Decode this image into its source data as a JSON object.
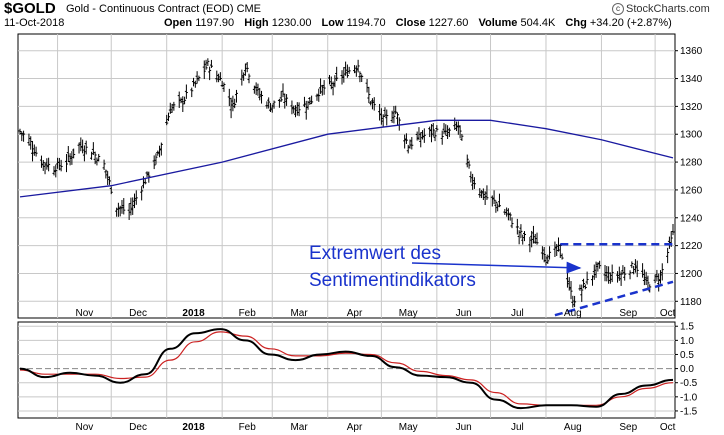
{
  "header": {
    "symbol": "$GOLD",
    "name": "Gold - Continuous Contract (EOD)  CME",
    "date": "11-Oct-2018",
    "logo": "StockCharts.com",
    "open_label": "Open",
    "open": "1197.90",
    "high_label": "High",
    "high": "1230.00",
    "low_label": "Low",
    "low": "1194.70",
    "close_label": "Close",
    "close": "1227.60",
    "volume_label": "Volume",
    "volume": "504.4K",
    "chg_label": "Chg",
    "chg": "+34.20 (+2.87%)"
  },
  "annotation": {
    "line1": "Extremwert des",
    "line2": "Sentimentindikators"
  },
  "colors": {
    "price": "#000000",
    "ma": "#1a1aa0",
    "trend": "#1a33cc",
    "osc_black": "#000000",
    "osc_red": "#cc2222",
    "grid": "#c8c8c8",
    "zero": "#888888"
  },
  "chart_data": [
    {
      "type": "line",
      "subtype": "ohlc-bars",
      "title": "",
      "x_tick_labels": [
        "Nov",
        "Dec",
        "2018",
        "Feb",
        "Mar",
        "Apr",
        "May",
        "Jun",
        "Jul",
        "Aug",
        "Sep",
        "Oct"
      ],
      "y_tick_labels": [
        "1180",
        "1200",
        "1220",
        "1240",
        "1260",
        "1280",
        "1300",
        "1320",
        "1340",
        "1360"
      ],
      "ylim": [
        1168,
        1372
      ],
      "grid": true,
      "series": [
        {
          "role": "price",
          "x": [
            "2017-10-11",
            "2017-10-16",
            "2017-10-23",
            "2017-10-30",
            "2017-11-06",
            "2017-11-13",
            "2017-11-20",
            "2017-11-27",
            "2017-12-04",
            "2017-12-11",
            "2017-12-18",
            "2017-12-27",
            "2018-01-03",
            "2018-01-10",
            "2018-01-17",
            "2018-01-24",
            "2018-02-01",
            "2018-02-07",
            "2018-02-14",
            "2018-02-21",
            "2018-02-28",
            "2018-03-07",
            "2018-03-14",
            "2018-03-21",
            "2018-03-28",
            "2018-04-04",
            "2018-04-11",
            "2018-04-18",
            "2018-04-25",
            "2018-05-02",
            "2018-05-09",
            "2018-05-16",
            "2018-05-23",
            "2018-05-30",
            "2018-06-06",
            "2018-06-13",
            "2018-06-20",
            "2018-06-27",
            "2018-07-05",
            "2018-07-12",
            "2018-07-19",
            "2018-07-26",
            "2018-08-02",
            "2018-08-09",
            "2018-08-16",
            "2018-08-23",
            "2018-08-30",
            "2018-09-06",
            "2018-09-13",
            "2018-09-20",
            "2018-09-27",
            "2018-10-04",
            "2018-10-11"
          ],
          "values": [
            1302,
            1296,
            1280,
            1276,
            1280,
            1292,
            1288,
            1278,
            1248,
            1244,
            1262,
            1284,
            1318,
            1324,
            1336,
            1350,
            1338,
            1320,
            1350,
            1330,
            1320,
            1326,
            1318,
            1322,
            1332,
            1336,
            1344,
            1350,
            1324,
            1310,
            1316,
            1292,
            1298,
            1302,
            1300,
            1306,
            1270,
            1256,
            1250,
            1240,
            1226,
            1224,
            1212,
            1218,
            1180,
            1192,
            1204,
            1198,
            1200,
            1206,
            1192,
            1198,
            1228
          ]
        },
        {
          "role": "moving-average",
          "x": [
            "2017-10-11",
            "2017-12-01",
            "2018-02-01",
            "2018-04-01",
            "2018-05-01",
            "2018-06-01",
            "2018-07-01",
            "2018-08-01",
            "2018-09-01",
            "2018-10-11"
          ],
          "values": [
            1255,
            1263,
            1280,
            1300,
            1305,
            1310,
            1310,
            1304,
            1296,
            1283
          ]
        }
      ],
      "trendlines": [
        {
          "style": "dashed",
          "x": [
            "2018-08-09",
            "2018-10-11"
          ],
          "values": [
            1221,
            1221
          ]
        },
        {
          "style": "dashed",
          "x": [
            "2018-08-06",
            "2018-10-11"
          ],
          "values": [
            1170,
            1194
          ]
        }
      ]
    },
    {
      "type": "line",
      "title": "",
      "x_tick_labels": [
        "Nov",
        "Dec",
        "2018",
        "Feb",
        "Mar",
        "Apr",
        "May",
        "Jun",
        "Jul",
        "Aug",
        "Sep",
        "Oct"
      ],
      "y_tick_labels": [
        "1.5",
        "1.0",
        "0.5",
        "0.0",
        "-0.5",
        "-1.0",
        "-1.5"
      ],
      "ylim": [
        -1.75,
        1.65
      ],
      "grid": true,
      "series": [
        {
          "role": "oscillator",
          "x": [
            "2017-10-11",
            "2017-10-25",
            "2017-11-08",
            "2017-11-22",
            "2017-12-06",
            "2017-12-20",
            "2018-01-03",
            "2018-01-17",
            "2018-01-31",
            "2018-02-14",
            "2018-02-28",
            "2018-03-14",
            "2018-03-28",
            "2018-04-11",
            "2018-04-25",
            "2018-05-09",
            "2018-05-23",
            "2018-06-06",
            "2018-06-20",
            "2018-07-04",
            "2018-07-18",
            "2018-08-01",
            "2018-08-15",
            "2018-08-29",
            "2018-09-12",
            "2018-09-26",
            "2018-10-11"
          ],
          "values": [
            0.0,
            -0.3,
            -0.15,
            -0.25,
            -0.5,
            -0.2,
            0.7,
            1.25,
            1.4,
            1.0,
            0.5,
            0.3,
            0.5,
            0.6,
            0.45,
            0.05,
            -0.25,
            -0.3,
            -0.5,
            -1.1,
            -1.4,
            -1.3,
            -1.3,
            -1.35,
            -0.9,
            -0.6,
            -0.4
          ]
        },
        {
          "role": "signal",
          "x": [
            "2017-10-11",
            "2017-10-25",
            "2017-11-08",
            "2017-11-22",
            "2017-12-06",
            "2017-12-20",
            "2018-01-03",
            "2018-01-17",
            "2018-01-31",
            "2018-02-14",
            "2018-02-28",
            "2018-03-14",
            "2018-03-28",
            "2018-04-11",
            "2018-04-25",
            "2018-05-09",
            "2018-05-23",
            "2018-06-06",
            "2018-06-20",
            "2018-07-04",
            "2018-07-18",
            "2018-08-01",
            "2018-08-15",
            "2018-08-29",
            "2018-09-12",
            "2018-09-26",
            "2018-10-11"
          ],
          "values": [
            -0.05,
            -0.2,
            -0.2,
            -0.2,
            -0.35,
            -0.3,
            0.3,
            0.95,
            1.3,
            1.15,
            0.7,
            0.45,
            0.45,
            0.55,
            0.5,
            0.2,
            -0.1,
            -0.25,
            -0.4,
            -0.85,
            -1.25,
            -1.3,
            -1.3,
            -1.3,
            -1.0,
            -0.7,
            -0.5
          ]
        }
      ]
    }
  ]
}
